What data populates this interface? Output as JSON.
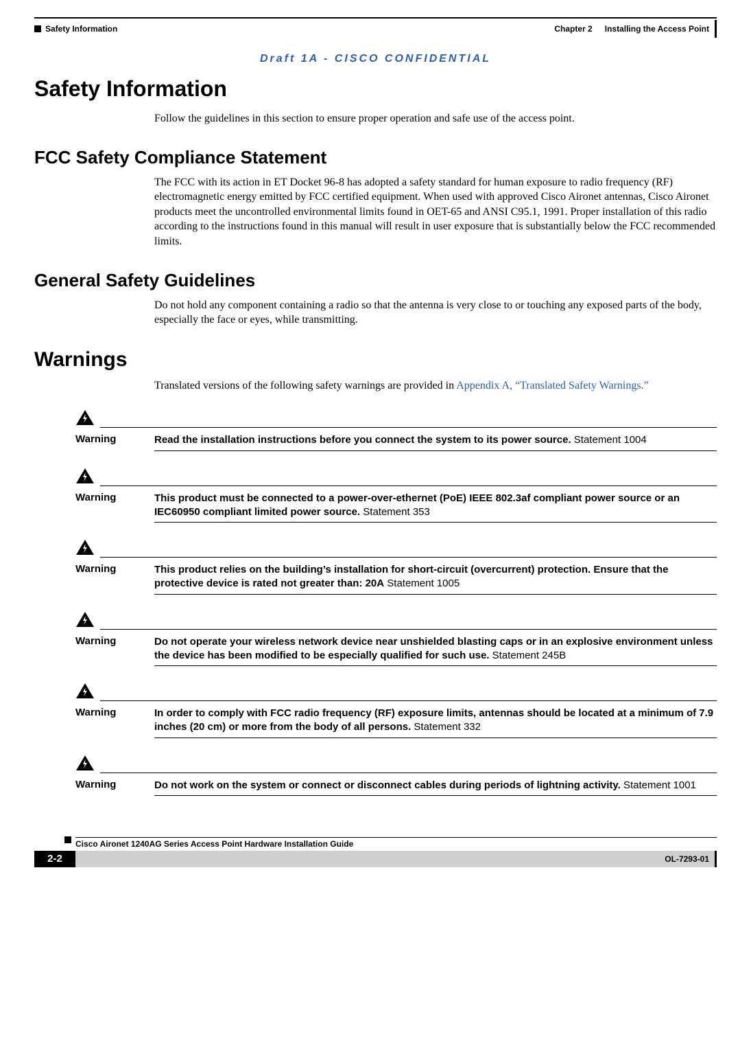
{
  "header": {
    "section_label": "Safety Information",
    "chapter_label": "Chapter 2",
    "chapter_title": "Installing the Access Point"
  },
  "confidential_banner": "Draft 1A - CISCO CONFIDENTIAL",
  "sections": {
    "safety_info": {
      "title": "Safety Information",
      "body": "Follow the guidelines in this section to ensure proper operation and safe use of the access point."
    },
    "fcc": {
      "title": "FCC Safety Compliance Statement",
      "body": "The FCC with its action in ET Docket 96-8 has adopted a safety standard for human exposure to radio frequency (RF) electromagnetic energy emitted by FCC certified equipment. When used with approved Cisco Aironet antennas, Cisco Aironet products meet the uncontrolled environmental limits found in OET-65 and ANSI C95.1, 1991. Proper installation of this radio according to the instructions found in this manual will result in user exposure that is substantially below the FCC recommended limits."
    },
    "general": {
      "title": "General Safety Guidelines",
      "body": "Do not hold any component containing a radio so that the antenna is very close to or touching any exposed parts of the body, especially the face or eyes, while transmitting."
    },
    "warnings_section": {
      "title": "Warnings",
      "intro_prefix": "Translated versions of the following safety warnings are provided in ",
      "intro_link": "Appendix A, “Translated Safety Warnings.”"
    }
  },
  "warning_label": "Warning",
  "warning_icon": {
    "fill": "#000000",
    "bolt": "#ffffff",
    "width": 28,
    "height": 24
  },
  "warnings": [
    {
      "bold": "Read the installation instructions before you connect the system to its power source.",
      "rest": " Statement 1004"
    },
    {
      "bold": "This product must be connected to a power-over-ethernet (PoE) IEEE 802.3af compliant power source or an IEC60950 compliant limited power source.",
      "rest": " Statement 353"
    },
    {
      "bold": "This product relies on the building’s installation for short-circuit (overcurrent) protection. Ensure that the protective device is rated not greater than: 20A",
      "rest": " Statement 1005"
    },
    {
      "bold": "Do not operate your wireless network device near unshielded blasting caps or in an explosive environment unless the device has been modified to be especially qualified for such use.",
      "rest": " Statement 245B"
    },
    {
      "bold": "In order to comply with FCC radio frequency (RF) exposure limits, antennas should be located at a minimum of 7.9 inches (20 cm) or more from the body of all persons.",
      "rest": " Statement 332"
    },
    {
      "bold": "Do not work on the system or connect or disconnect cables during periods of lightning activity.",
      "rest": " Statement 1001"
    }
  ],
  "footer": {
    "guide_title": "Cisco Aironet 1240AG Series Access Point Hardware Installation Guide",
    "page_number": "2-2",
    "doc_id": "OL-7293-01"
  },
  "colors": {
    "link": "#2a5db0",
    "confidential": "#2a5db0",
    "grey_bar": "#cfcfcf",
    "black": "#000000",
    "white": "#ffffff"
  }
}
